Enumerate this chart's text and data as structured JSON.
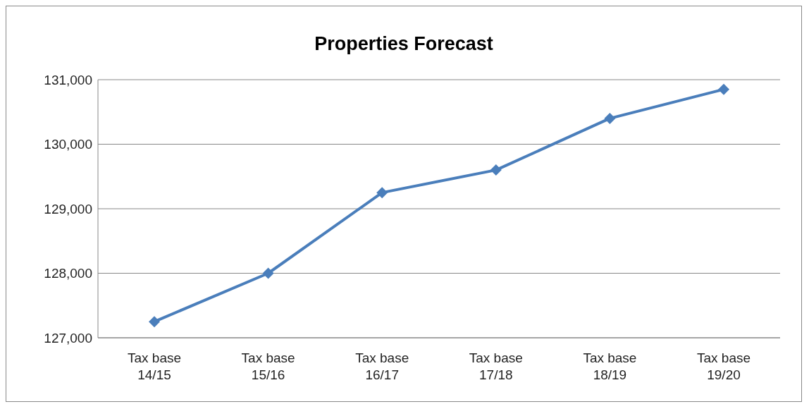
{
  "chart_data": {
    "type": "line",
    "title": "Properties Forecast",
    "categories": [
      "Tax base\n14/15",
      "Tax base\n15/16",
      "Tax base\n16/17",
      "Tax base\n17/18",
      "Tax base\n18/19",
      "Tax base\n19/20"
    ],
    "series": [
      {
        "color": "#4a7ebb",
        "values": [
          127250,
          128000,
          129250,
          129600,
          130400,
          130850
        ]
      }
    ],
    "ylim": [
      127000,
      131000
    ],
    "yticks": [
      {
        "value": 127000,
        "label": "127,000"
      },
      {
        "value": 128000,
        "label": "128,000"
      },
      {
        "value": 129000,
        "label": "129,000"
      },
      {
        "value": 130000,
        "label": "130,000"
      },
      {
        "value": 131000,
        "label": "131,000"
      }
    ],
    "grid": "y",
    "legend": false,
    "marker": "diamond",
    "line_style": "solid"
  }
}
